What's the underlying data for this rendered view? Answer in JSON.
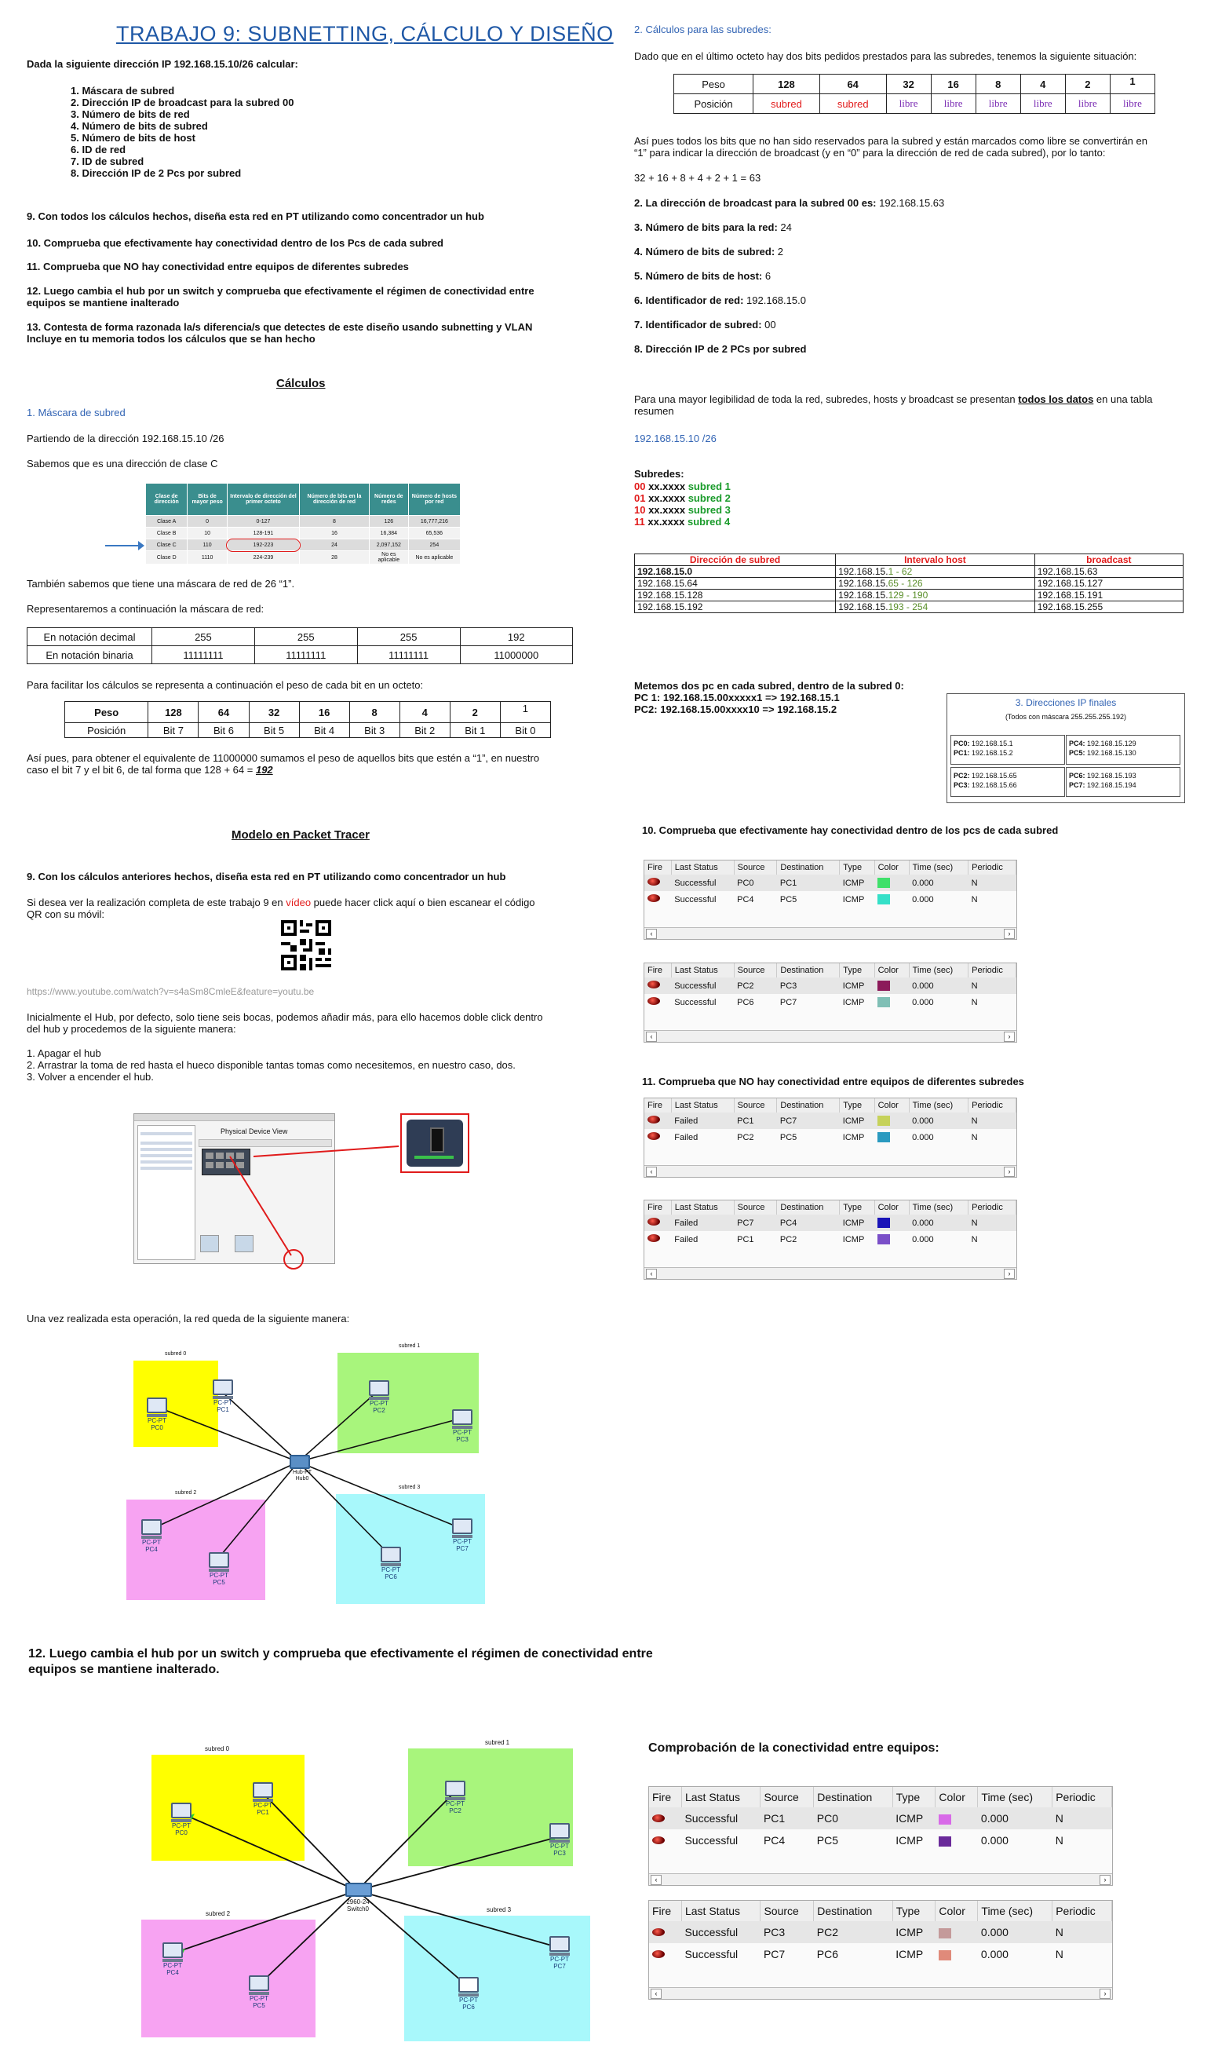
{
  "left": {
    "title": "TRABAJO 9: SUBNETTING, CÁLCULO Y DISEÑO",
    "intro": "Dada la siguiente dirección IP 192.168.15.10/26 calcular:",
    "list": [
      "1.   Máscara de subred",
      "2.   Dirección IP de broadcast para la subred 00",
      "3.   Número de bits de red",
      "4.   Número de bits de subred",
      "5.   Número de bits de host",
      "6.   ID de red",
      "7.   ID de subred",
      "8.   Dirección IP de 2 Pcs por subred"
    ],
    "q9": "9. Con todos los cálculos hechos, diseña esta red en PT utilizando como concentrador un hub",
    "q10": "10. Comprueba que efectivamente hay conectividad dentro de los Pcs de cada subred",
    "q11": "11. Comprueba que NO hay conectividad entre equipos de diferentes subredes",
    "q12a": "12. Luego cambia el hub por un switch y comprueba que efectivamente el régimen de conectividad entre",
    "q12b": "equipos se mantiene inalterado",
    "q13a": "13. Contesta de forma razonada la/s diferencia/s que detectes de este diseño usando  subnetting y VLAN",
    "q13b": "Incluye en tu memoria todos los cálculos que se han hecho",
    "calc_heading": "Cálculos",
    "mask_heading": "1. Máscara de subred",
    "from_addr": "Partiendo de la dirección 192.168.15.10 /26",
    "class_c": "Sabemos que es una dirección de clase C",
    "class_table": {
      "headers": [
        "Clase de dirección",
        "Bits de mayor peso",
        "Intervalo de dirección del primer octeto",
        "Número de bits en la dirección de red",
        "Número de redes",
        "Número de hosts por red"
      ],
      "rows": [
        [
          "Clase A",
          "0",
          "0-127",
          "8",
          "126",
          "16,777,216"
        ],
        [
          "Clase B",
          "10",
          "128-191",
          "16",
          "16,384",
          "65,536"
        ],
        [
          "Clase C",
          "110",
          "192-223",
          "24",
          "2,097,152",
          "254"
        ],
        [
          "Clase D",
          "1110",
          "224-239",
          "28",
          "No es aplicable",
          "No es aplicable"
        ]
      ]
    },
    "mask26": "También sabemos que tiene una máscara de red de 26 “1”.",
    "represent": "Representaremos a continuación la máscara de red:",
    "mask_table": [
      [
        "En notación decimal",
        "255",
        "255",
        "255",
        "192"
      ],
      [
        "En notación binaria",
        "11111111",
        "11111111",
        "11111111",
        "11000000"
      ]
    ],
    "weights_intro": "Para facilitar los cálculos se representa a continuación el peso de cada bit en un octeto:",
    "weights_table": [
      [
        "Peso",
        "128",
        "64",
        "32",
        "16",
        "8",
        "4",
        "2",
        "1"
      ],
      [
        "Posición",
        "Bit 7",
        "Bit 6",
        "Bit 5",
        "Bit 4",
        "Bit 3",
        "Bit 2",
        "Bit 1",
        "Bit 0"
      ]
    ],
    "so_a": "Así pues, para obtener el equivalente de 11000000 sumamos el peso de aquellos bits que estén a “1”, en nuestro",
    "so_b": "caso el bit 7 y el bit 6, de tal forma que 128 + 64 = ",
    "so_val": "192",
    "pt_heading": "Modelo en Packet Tracer",
    "pt_q9": "9. Con los cálculos anteriores hechos, diseña esta red en PT utilizando como concentrador un hub",
    "video_a": "Si desea ver la realización completa de este trabajo 9 en ",
    "video_word": "vídeo",
    "video_b": " puede hacer click aquí o bien escanear el código",
    "video_c": "QR con su móvil:",
    "url": "https://www.youtube.com/watch?v=s4aSm8CmleE&feature=youtu.be",
    "hub_a": "Inicialmente el Hub, por defecto, solo tiene seis bocas, podemos añadir más, para ello hacemos doble click dentro",
    "hub_b": "del hub y procedemos de la siguiente manera:",
    "steps": [
      "1. Apagar el hub",
      "2. Arrastrar la toma de red hasta el hueco disponible tantas tomas como necesitemos, en nuestro caso, dos.",
      "3. Volver a encender el hub."
    ],
    "pdv_title": "Physical Device View",
    "after": "Una vez realizada esta operación, la red queda de la siguiente manera:",
    "q12_big_a": "12. Luego cambia el hub por un switch y comprueba que efectivamente el régimen de conectividad entre",
    "q12_big_b": "equipos se mantiene inalterado."
  },
  "right": {
    "subnet_heading": "2. Cálculos para las subredes:",
    "given": "Dado que en el último octeto hay dos bits pedidos prestados para las subredes, tenemos la siguiente situación:",
    "bits_table": [
      [
        "Peso",
        "128",
        "64",
        "32",
        "16",
        "8",
        "4",
        "2",
        "1"
      ],
      [
        "Posición",
        "subred",
        "subred",
        "libre",
        "libre",
        "libre",
        "libre",
        "libre",
        "libre"
      ]
    ],
    "free_a": "Así pues todos los bits que no han sido reservados para la subred y están marcados como libre se convertirán en",
    "free_b": "“1” para indicar la dirección de broadcast (y en “0” para la dirección de red de cada subred), por lo tanto:",
    "sum": "32 + 16 + 8 + 4 + 2 + 1 =  63",
    "answers": [
      {
        "label": "2. La dirección de broadcast para la subred 00 es:",
        "value": " 192.168.15.63"
      },
      {
        "label": "3. Número de bits para la red:",
        "value": " 24"
      },
      {
        "label": "4. Número de bits de subred:",
        "value": " 2"
      },
      {
        "label": "5. Número de bits de host:",
        "value": " 6"
      },
      {
        "label": "6. Identificador de red:",
        "value": " 192.168.15.0"
      },
      {
        "label": "7. Identificador de subred:",
        "value": " 00"
      },
      {
        "label": "8. Dirección IP de 2 PCs por subred",
        "value": ""
      }
    ],
    "legib_a": "Para una mayor legibilidad de toda la red, subredes, hosts y broadcast se presentan ",
    "legib_u": "todos los datos",
    "legib_b": " en una tabla",
    "legib_c": "resumen",
    "net": "192.168.15.10 /26",
    "subredes_label": "Subredes:",
    "subredes": [
      {
        "bits": "00",
        "rest": " xx.xxxx",
        "name": "subred 1"
      },
      {
        "bits": "01",
        "rest": " xx.xxxx",
        "name": "subred 2"
      },
      {
        "bits": "10",
        "rest": " xx.xxxx",
        "name": "subred 3"
      },
      {
        "bits": "11",
        "rest": " xx.xxxx",
        "name": "subred 4"
      }
    ],
    "sub_table": {
      "headers": [
        "Dirección de subred",
        "Intervalo host",
        "broadcast"
      ],
      "rows": [
        [
          "192.168.15.0",
          "192.168.15.",
          "1 - 62",
          "192.168.15.63"
        ],
        [
          "192.168.15.64",
          "192.168.15.",
          "65 - 126",
          "192.168.15.127"
        ],
        [
          "192.168.15.128",
          "192.168.15.",
          "129 - 190",
          "192.168.15.191"
        ],
        [
          "192.168.15.192",
          "192.168.15.",
          "193 - 254",
          "192.168.15.255"
        ]
      ]
    },
    "meter_a": "Metemos dos pc en cada subred, dentro de la subred 0:",
    "meter_b": "PC 1: 192.168.15.00xxxxx1  => 192.168.15.1",
    "meter_c": "PC2: 192.168.15.00xxxx10 => 192.168.15.2",
    "final_title": "3. Direcciones IP finales",
    "final_sub": "(Todos con máscara 255.255.255.192)",
    "final": [
      [
        [
          "PC0:",
          "192.168.15.1"
        ],
        [
          "PC1:",
          "192.168.15.2"
        ]
      ],
      [
        [
          "PC4:",
          "192.168.15.129"
        ],
        [
          "PC5:",
          "192.168.15.130"
        ]
      ],
      [
        [
          "PC2:",
          "192.168.15.65"
        ],
        [
          "PC3:",
          "192.168.15.66"
        ]
      ],
      [
        [
          "PC6:",
          "192.168.15.193"
        ],
        [
          "PC7:",
          "192.168.15.194"
        ]
      ]
    ],
    "q10": "10. Comprueba que efectivamente hay conectividad dentro de los pcs de cada subred",
    "q11": "11. Comprueba que NO hay conectividad entre equipos de diferentes subredes",
    "check": "Comprobación de la conectividad entre equipos:"
  },
  "sim_headers": [
    "Fire",
    "Last Status",
    "Source",
    "Destination",
    "Type",
    "Color",
    "Time (sec)",
    "Periodic"
  ],
  "sims": [
    [
      [
        "Successful",
        "PC0",
        "PC1",
        "ICMP",
        "#3fe06a",
        "0.000",
        "N"
      ],
      [
        "Successful",
        "PC4",
        "PC5",
        "ICMP",
        "#35e0c8",
        "0.000",
        "N"
      ]
    ],
    [
      [
        "Successful",
        "PC2",
        "PC3",
        "ICMP",
        "#8c1a5a",
        "0.000",
        "N"
      ],
      [
        "Successful",
        "PC6",
        "PC7",
        "ICMP",
        "#7fbfb5",
        "0.000",
        "N"
      ]
    ],
    [
      [
        "Failed",
        "PC1",
        "PC7",
        "ICMP",
        "#c6d25a",
        "0.000",
        "N"
      ],
      [
        "Failed",
        "PC2",
        "PC5",
        "ICMP",
        "#2a9ac0",
        "0.000",
        "N"
      ]
    ],
    [
      [
        "Failed",
        "PC7",
        "PC4",
        "ICMP",
        "#1a14b8",
        "0.000",
        "N"
      ],
      [
        "Failed",
        "PC1",
        "PC2",
        "ICMP",
        "#7a4fc8",
        "0.000",
        "N"
      ]
    ],
    [
      [
        "Successful",
        "PC1",
        "PC0",
        "ICMP",
        "#d86ae8",
        "0.000",
        "N"
      ],
      [
        "Successful",
        "PC4",
        "PC5",
        "ICMP",
        "#6a2a9a",
        "0.000",
        "N"
      ]
    ],
    [
      [
        "Successful",
        "PC3",
        "PC2",
        "ICMP",
        "#c49a9a",
        "0.000",
        "N"
      ],
      [
        "Successful",
        "PC7",
        "PC6",
        "ICMP",
        "#e08a7a",
        "0.000",
        "N"
      ]
    ]
  ],
  "topo": {
    "subnets": [
      "subred 0",
      "subred 1",
      "subred 2",
      "subred 3"
    ],
    "pcs": [
      [
        "PC-PT",
        "PC0"
      ],
      [
        "PC-PT",
        "PC1"
      ],
      [
        "PC-PT",
        "PC2"
      ],
      [
        "PC-PT",
        "PC3"
      ],
      [
        "PC-PT",
        "PC4"
      ],
      [
        "PC-PT",
        "PC5"
      ],
      [
        "PC-PT",
        "PC6"
      ],
      [
        "PC-PT",
        "PC7"
      ]
    ],
    "hub": "Hub-PT Hub0",
    "switch": "2960-24 Switch0"
  },
  "colors": {
    "title": "#1f58a6",
    "yellow": "#ffff00",
    "green": "#a8f57c",
    "pink": "#f7a3f2",
    "cyan": "#a8f8fb"
  }
}
